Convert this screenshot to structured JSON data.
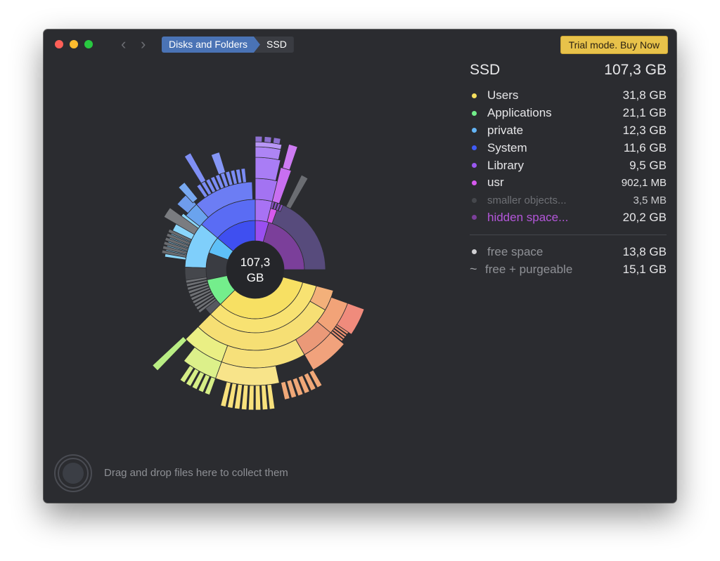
{
  "window": {
    "breadcrumb": [
      "Disks and Folders",
      "SSD"
    ],
    "buy_label": "Trial mode. Buy Now",
    "nav_back": "‹",
    "nav_forward": "›"
  },
  "chart": {
    "center_value": "107,3",
    "center_unit": "GB"
  },
  "panel": {
    "title": "SSD",
    "total": "107,3 GB",
    "items": [
      {
        "name": "Users",
        "size": "31,8 GB",
        "color": "#f6e05e"
      },
      {
        "name": "Applications",
        "size": "21,1 GB",
        "color": "#72ee8a"
      },
      {
        "name": "private",
        "size": "12,3 GB",
        "color": "#64b5f6"
      },
      {
        "name": "System",
        "size": "11,6 GB",
        "color": "#3f5bf5"
      },
      {
        "name": "Library",
        "size": "9,5 GB",
        "color": "#9a58f0"
      },
      {
        "name": "usr",
        "size": "902,1 MB",
        "color": "#d659ee"
      },
      {
        "name": "smaller objects...",
        "size": "3,5 MB",
        "color": "#45474c"
      },
      {
        "name": "hidden space...",
        "size": "20,2 GB",
        "color": "#7b3f9a"
      }
    ],
    "free_space": {
      "name": "free space",
      "size": "13,8 GB"
    },
    "free_purgeable": {
      "name": "free + purgeable",
      "size": "15,1 GB",
      "symbol": "~"
    }
  },
  "drop_zone": {
    "text": "Drag and drop files here to collect them"
  }
}
